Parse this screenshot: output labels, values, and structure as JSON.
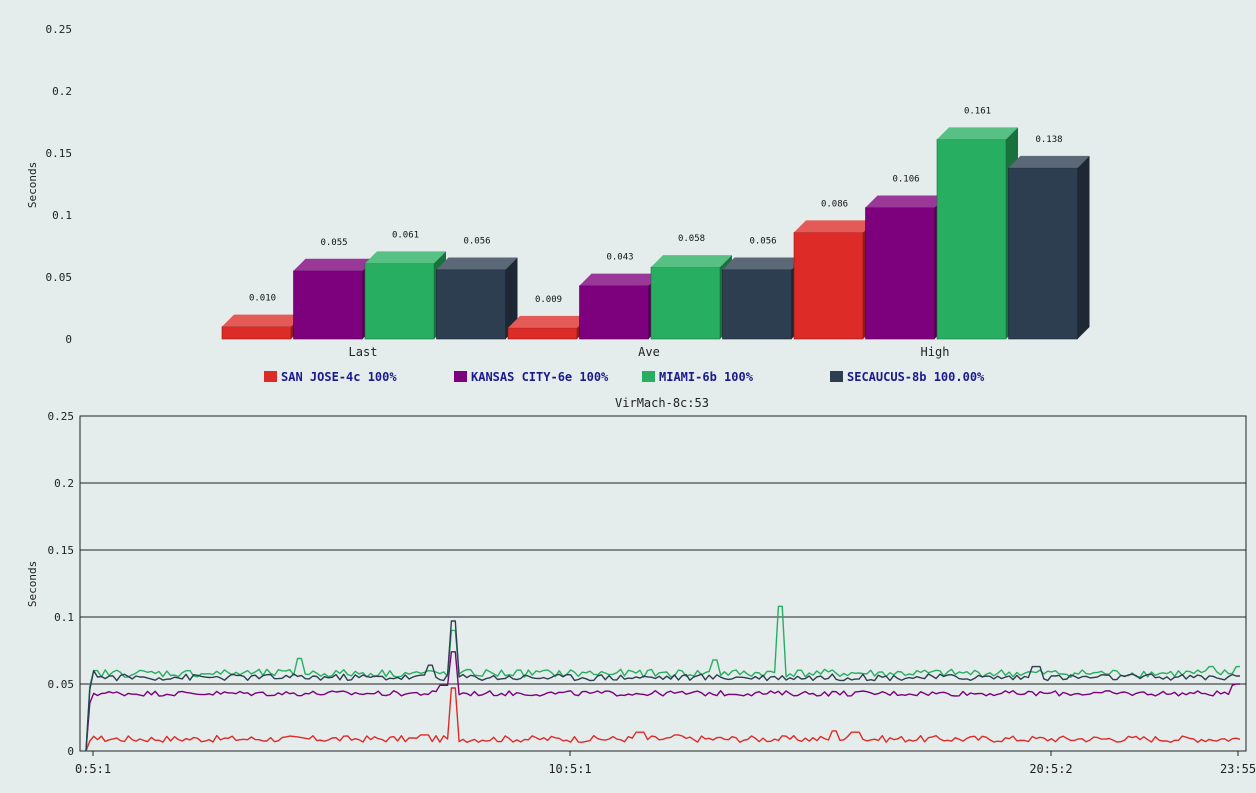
{
  "chart_data": [
    {
      "type": "bar",
      "ylabel": "Seconds",
      "ylim": [
        0,
        0.25
      ],
      "y_ticks": [
        "0",
        "0.05",
        "0.1",
        "0.15",
        "0.2",
        "0.25"
      ],
      "categories": [
        "Last",
        "Ave",
        "High"
      ],
      "series": [
        {
          "name": "SAN JOSE-4c 100%",
          "color": "#dd2b27",
          "values": [
            0.01,
            0.009,
            0.086
          ],
          "labels": [
            "0.010",
            "0.009",
            "0.086"
          ]
        },
        {
          "name": "KANSAS CITY-6e 100%",
          "color": "#7d007d",
          "values": [
            0.055,
            0.043,
            0.106
          ],
          "labels": [
            "0.055",
            "0.043",
            "0.106"
          ]
        },
        {
          "name": "MIAMI-6b 100%",
          "color": "#27ae60",
          "values": [
            0.061,
            0.058,
            0.161
          ],
          "labels": [
            "0.061",
            "0.058",
            "0.161"
          ]
        },
        {
          "name": "SECAUCUS-8b 100.00%",
          "color": "#2c3e50",
          "values": [
            0.056,
            0.056,
            0.138
          ],
          "labels": [
            "0.056",
            "0.056",
            "0.138"
          ]
        }
      ],
      "legend_position": "bottom"
    },
    {
      "type": "line",
      "title": "VirMach-8c:53",
      "ylabel": "Seconds",
      "ylim": [
        0,
        0.25
      ],
      "y_ticks": [
        "0",
        "0.05",
        "0.1",
        "0.15",
        "0.2",
        "0.25"
      ],
      "x_ticks": [
        "0:5:1",
        "10:5:1",
        "20:5:2",
        "23:55"
      ],
      "grid": true,
      "series": [
        {
          "name": "SAN JOSE-4c 100%",
          "color": "#dd2b27",
          "baseline": 0.009,
          "jitter": 0.0025,
          "spikes": [
            [
              0.0,
              0.0
            ],
            [
              0.005,
              0.011
            ],
            [
              0.293,
              0.012
            ],
            [
              0.318,
              0.047
            ],
            [
              0.48,
              0.014
            ],
            [
              0.512,
              0.012
            ],
            [
              0.648,
              0.015
            ],
            [
              0.667,
              0.014
            ]
          ]
        },
        {
          "name": "KANSAS CITY-6e 100%",
          "color": "#7d007d",
          "baseline": 0.043,
          "jitter": 0.002,
          "spikes": [
            [
              0.0,
              0.0
            ],
            [
              0.005,
              0.043
            ],
            [
              0.318,
              0.074
            ],
            [
              0.31,
              0.049
            ],
            [
              0.996,
              0.049
            ],
            [
              1.0,
              0.05
            ]
          ]
        },
        {
          "name": "MIAMI-6b 100%",
          "color": "#27ae60",
          "baseline": 0.058,
          "jitter": 0.003,
          "spikes": [
            [
              0.0,
              0.0
            ],
            [
              0.005,
              0.06
            ],
            [
              0.185,
              0.069
            ],
            [
              0.318,
              0.09
            ],
            [
              0.545,
              0.068
            ],
            [
              0.601,
              0.108
            ],
            [
              0.976,
              0.063
            ],
            [
              1.0,
              0.063
            ]
          ]
        },
        {
          "name": "SECAUCUS-8b 100.00%",
          "color": "#2c3e50",
          "baseline": 0.055,
          "jitter": 0.0025,
          "spikes": [
            [
              0.0,
              0.0
            ],
            [
              0.005,
              0.06
            ],
            [
              0.298,
              0.064
            ],
            [
              0.318,
              0.097
            ],
            [
              0.823,
              0.063
            ],
            [
              1.0,
              0.056
            ]
          ]
        }
      ]
    }
  ]
}
